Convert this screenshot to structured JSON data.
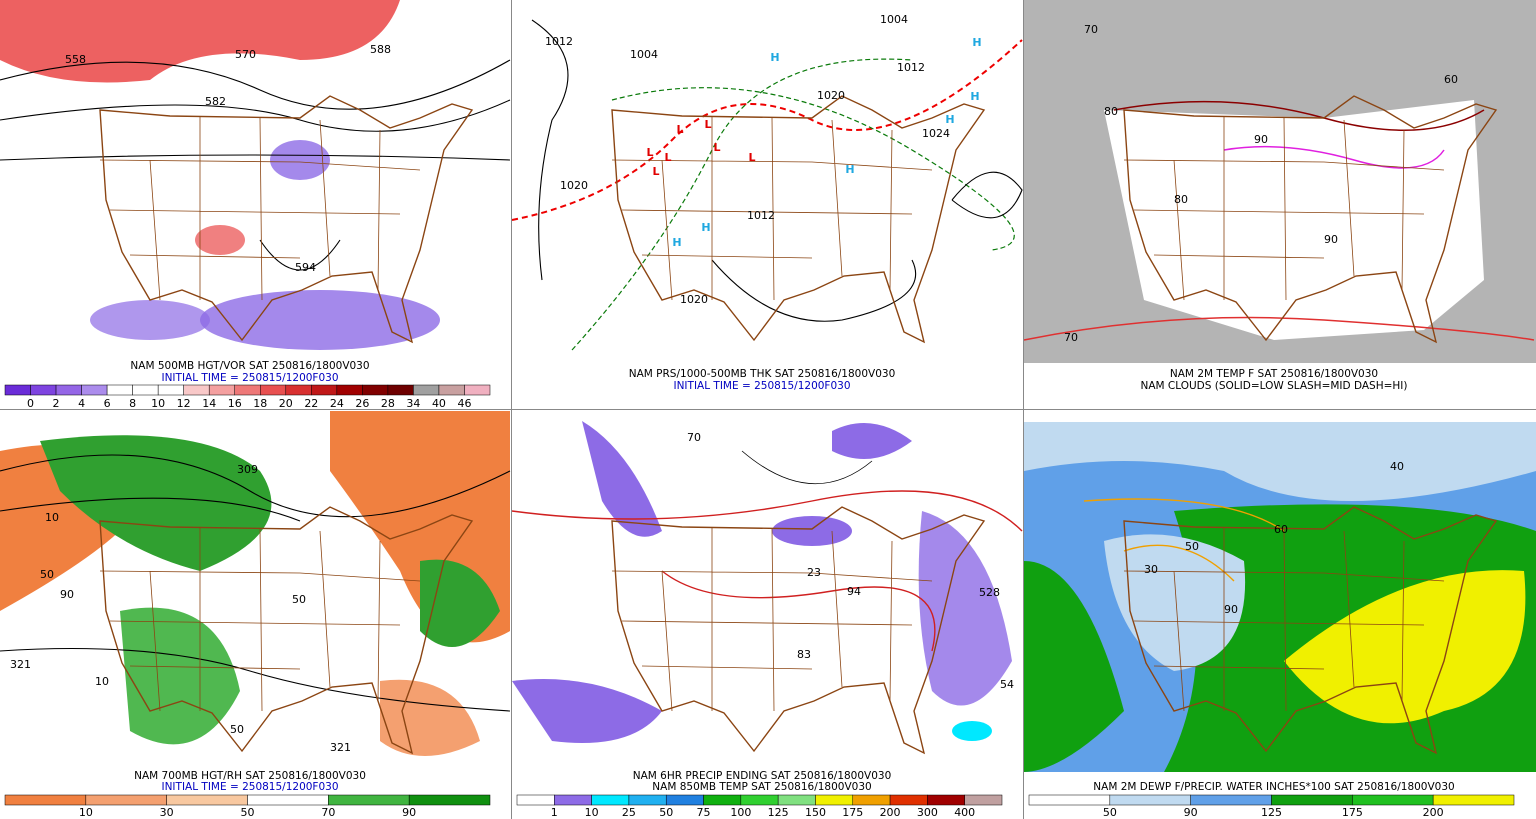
{
  "panels": [
    {
      "caption": [
        "NAM 500MB HGT/VOR SAT 250816/1800V030",
        "INITIAL TIME = 250815/1200F030"
      ],
      "caption_colors": [
        "#000000",
        "#0000c0"
      ],
      "colorbar": {
        "colors": [
          "#6a2cd8",
          "#7e44e0",
          "#9466e6",
          "#ab8cec",
          "#ffffff",
          "#ffffff",
          "#ffffff",
          "#f8c8c8",
          "#f4a0a0",
          "#ee7878",
          "#e85050",
          "#d83030",
          "#c01818",
          "#a00000",
          "#800000",
          "#6e0000",
          "#a0a0a0",
          "#c8a0a0",
          "#f0b0c0"
        ],
        "labels": [
          "0",
          "2",
          "4",
          "6",
          "8",
          "10",
          "12",
          "14",
          "16",
          "18",
          "20",
          "22",
          "24",
          "26",
          "28",
          "34",
          "40",
          "46"
        ]
      },
      "map_labels": [
        "558",
        "570",
        "582",
        "594",
        "588"
      ]
    },
    {
      "caption": [
        "NAM PRS/1000-500MB THK SAT 250816/1800V030",
        "INITIAL TIME = 250815/1200F030"
      ],
      "caption_colors": [
        "#000000",
        "#0000c0"
      ],
      "map_labels": [
        "1012",
        "1004",
        "1004",
        "1012",
        "1020",
        "1020",
        "1012",
        "1020",
        "1024"
      ],
      "pressure_centers": [
        "L",
        "L",
        "L",
        "L",
        "L",
        "L",
        "L",
        "H",
        "H",
        "H",
        "H",
        "H",
        "H",
        "H"
      ]
    },
    {
      "caption": [
        "NAM 2M TEMP F SAT 250816/1800V030",
        "NAM CLOUDS (SOLID=LOW SLASH=MID DASH=HI)"
      ],
      "caption_colors": [
        "#000000",
        "#000000"
      ],
      "map_labels": [
        "80",
        "70",
        "90",
        "90",
        "80",
        "60",
        "70"
      ]
    },
    {
      "caption": [
        "NAM 700MB HGT/RH SAT 250816/1800V030",
        "INITIAL TIME = 250815/1200F030"
      ],
      "caption_colors": [
        "#000000",
        "#0000c0"
      ],
      "colorbar": {
        "colors": [
          "#f08040",
          "#f4a070",
          "#f8c8a0",
          "#ffffff",
          "#40b440",
          "#109010"
        ],
        "labels": [
          "10",
          "30",
          "50",
          "70",
          "90"
        ]
      },
      "map_labels": [
        "10",
        "50",
        "90",
        "321",
        "309",
        "50",
        "50",
        "321",
        "10"
      ]
    },
    {
      "caption": [
        "NAM 6HR PRECIP ENDING SAT 250816/1800V030",
        "NAM 850MB TEMP SAT 250816/1800V030"
      ],
      "caption_colors": [
        "#000000",
        "#000000"
      ],
      "colorbar": {
        "colors": [
          "#ffffff",
          "#8d6be6",
          "#00e8ff",
          "#20b0f0",
          "#2080e0",
          "#10b010",
          "#30d030",
          "#80e080",
          "#f0f000",
          "#f0a000",
          "#e03000",
          "#a00000",
          "#c0a0a0"
        ],
        "labels": [
          "1",
          "10",
          "25",
          "50",
          "75",
          "100",
          "125",
          "150",
          "175",
          "200",
          "300",
          "400"
        ]
      },
      "map_labels": [
        "70",
        "23",
        "94",
        "83",
        "54",
        "528"
      ]
    },
    {
      "caption": [
        "NAM 2M DEWP F/PRECIP. WATER INCHES*100 SAT 250816/1800V030"
      ],
      "caption_colors": [
        "#000000"
      ],
      "colorbar": {
        "colors": [
          "#ffffff",
          "#c0daf0",
          "#60a0e8",
          "#10a010",
          "#20c020",
          "#f0f000"
        ],
        "labels": [
          "50",
          "90",
          "125",
          "175",
          "200"
        ]
      },
      "map_labels": [
        "40",
        "50",
        "30",
        "90",
        "60"
      ]
    }
  ]
}
